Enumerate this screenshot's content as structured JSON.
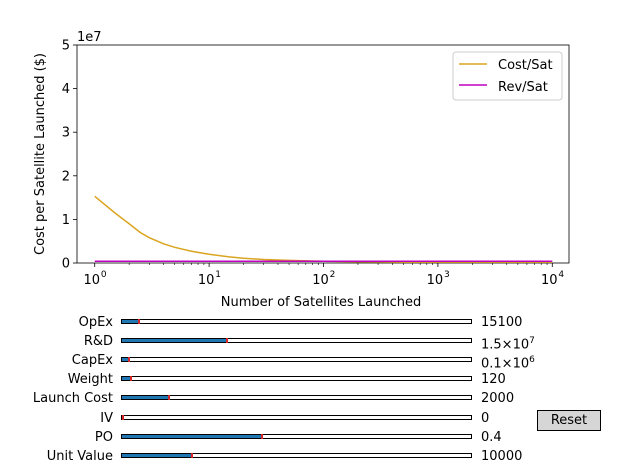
{
  "chart_data": {
    "type": "line",
    "xscale": "log",
    "xlim": [
      0.7,
      14000
    ],
    "ylim": [
      0,
      5
    ],
    "y_multiplier": "1e7",
    "xlabel": "Number of Satellites Launched",
    "ylabel": "Cost per Satellite Launched ($)",
    "x_ticks": [
      1,
      10,
      100,
      1000,
      10000
    ],
    "x_tick_labels": [
      {
        "base": "10",
        "exp": "0"
      },
      {
        "base": "10",
        "exp": "1"
      },
      {
        "base": "10",
        "exp": "2"
      },
      {
        "base": "10",
        "exp": "3"
      },
      {
        "base": "10",
        "exp": "4"
      }
    ],
    "y_ticks": [
      0,
      1,
      2,
      3,
      4,
      5
    ],
    "y_tick_labels": [
      "0",
      "1",
      "2",
      "3",
      "4",
      "5"
    ],
    "legend_position": "top-right",
    "series": [
      {
        "name": "Cost/Sat",
        "color": "#daa520",
        "x": [
          1,
          1.5,
          2,
          2.5,
          3,
          4,
          5,
          7,
          10,
          15,
          20,
          30,
          50,
          100,
          200,
          500,
          1000,
          10000
        ],
        "y": [
          1.53,
          1.15,
          0.9,
          0.7,
          0.58,
          0.44,
          0.36,
          0.27,
          0.2,
          0.14,
          0.11,
          0.08,
          0.06,
          0.04,
          0.03,
          0.02,
          0.02,
          0.02
        ]
      },
      {
        "name": "Rev/Sat",
        "color": "#c000c0",
        "x": [
          1,
          10000
        ],
        "y": [
          0.04,
          0.04
        ]
      }
    ]
  },
  "sliders": [
    {
      "label": "OpEx",
      "value": "15100",
      "fraction": 0.05
    },
    {
      "label": "R&D",
      "value": "1.5×10",
      "sup": "7",
      "fraction": 0.3
    },
    {
      "label": "CapEx",
      "value": "0.1×10",
      "sup": "6",
      "fraction": 0.02
    },
    {
      "label": "Weight",
      "value": "120",
      "fraction": 0.025
    },
    {
      "label": "Launch Cost",
      "value": "2000",
      "fraction": 0.135
    },
    {
      "label": "IV",
      "value": "0",
      "fraction": 0.0
    },
    {
      "label": "PO",
      "value": "0.4",
      "fraction": 0.4
    },
    {
      "label": "Unit Value",
      "value": "10000",
      "fraction": 0.2
    }
  ],
  "reset": {
    "label": "Reset"
  }
}
